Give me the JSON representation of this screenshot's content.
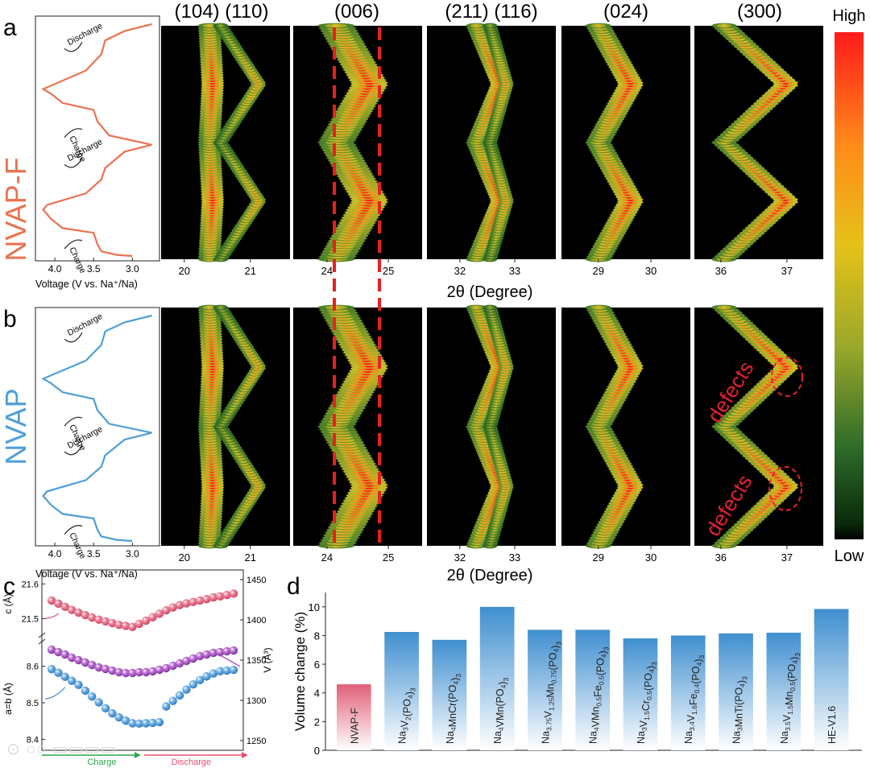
{
  "panel_letters": [
    "a",
    "b",
    "c",
    "d"
  ],
  "colorbar": {
    "high": "High",
    "low": "Low",
    "stops": [
      "#ff1a1a",
      "#ff8a1a",
      "#e6c21a",
      "#8fa62a",
      "#2e6b2a",
      "#0a2a0a",
      "#000000"
    ]
  },
  "shared": {
    "two_theta_label": "2θ (Degree)"
  },
  "rows": [
    {
      "sample": "NVAP-F",
      "color": "#e8734f",
      "voltage_axis_label": "Voltage (V vs. Na⁺/Na)",
      "voltage_ticks": [
        "4.0",
        "3.5",
        "3.0"
      ],
      "labels": {
        "charge": "Charge",
        "discharge": "Discharge"
      },
      "defects": []
    },
    {
      "sample": "NVAP",
      "color": "#4d9fd8",
      "voltage_axis_label": "Voltage (V vs. Na⁺/Na)",
      "voltage_ticks": [
        "4.0",
        "3.5",
        "3.0"
      ],
      "labels": {
        "charge": "Charge",
        "discharge": "Discharge"
      },
      "defects": [
        "defects",
        "defects"
      ]
    }
  ],
  "operando_panels": [
    {
      "peaks": "(104) (110)",
      "ticks": [
        "20",
        "21"
      ],
      "tick_vals": [
        20,
        21
      ],
      "range": [
        19.65,
        21.6
      ],
      "traces": [
        {
          "base": 20.38,
          "amp": 0.05,
          "w": 0.09
        },
        {
          "base": 20.55,
          "amp": 0.58,
          "w": 0.06
        }
      ]
    },
    {
      "peaks": "(006)",
      "ticks": [
        "24",
        "25"
      ],
      "tick_vals": [
        24,
        25
      ],
      "range": [
        23.45,
        25.55
      ],
      "traces": [
        {
          "base": 24.15,
          "amp": 0.55,
          "w": 0.16
        }
      ]
    },
    {
      "peaks": "(211) (116)",
      "ticks": [
        "32",
        "33"
      ],
      "tick_vals": [
        32,
        33
      ],
      "range": [
        31.4,
        33.75
      ],
      "traces": [
        {
          "base": 32.3,
          "amp": 0.45,
          "w": 0.1
        },
        {
          "base": 32.55,
          "amp": 0.3,
          "w": 0.07
        }
      ]
    },
    {
      "peaks": "(024)",
      "ticks": [
        "29",
        "30"
      ],
      "tick_vals": [
        29,
        30
      ],
      "range": [
        28.3,
        30.75
      ],
      "traces": [
        {
          "base": 29.0,
          "amp": 0.62,
          "w": 0.13
        }
      ]
    },
    {
      "peaks": "(300)",
      "ticks": [
        "36",
        "37"
      ],
      "tick_vals": [
        36,
        37
      ],
      "range": [
        35.6,
        37.55
      ],
      "traces": [
        {
          "base": 36.05,
          "amp": 0.95,
          "w": 0.1
        }
      ]
    }
  ],
  "panel_c": {
    "flow_labels": {
      "charge": "Charge",
      "discharge": "Discharge"
    },
    "top": {
      "left_label": "c (Å)",
      "left_ticks": [
        21.5,
        21.6
      ],
      "left_range": [
        21.45,
        21.64
      ],
      "right_label": "V (Å³)",
      "right_ticks": [
        1250,
        1300,
        1350,
        1400,
        1450
      ],
      "right_range": [
        1238,
        1462
      ]
    },
    "bottom": {
      "left_label": "a=b (Å)",
      "left_ticks": [
        8.4,
        8.5,
        8.6
      ],
      "left_range": [
        8.37,
        8.665
      ]
    },
    "colors": {
      "c": "#e0607a",
      "V": "#a450c0",
      "a": "#4a9ad8",
      "charge": "#2ea84a",
      "discharge": "#e85070"
    }
  },
  "chart_data": {
    "type": "bar",
    "title": "",
    "xlabel": "",
    "ylabel": "Volume change (%)",
    "ylim": [
      0,
      11
    ],
    "yticks": [
      0,
      2,
      4,
      6,
      8,
      10
    ],
    "categories": [
      "NVAP-F",
      "Na<sub>3</sub>V<sub>2</sub>(PO<sub>4</sub>)<sub>3</sub>",
      "Na<sub>4</sub>MnCr(PO<sub>4</sub>)<sub>3</sub>",
      "Na<sub>4</sub>VMn(PO<sub>4</sub>)<sub>3</sub>",
      "Na<sub>3.75</sub>V<sub>1.25</sub>Mn<sub>0.75</sub>(PO<sub>4</sub>)<sub>3</sub>",
      "Na<sub>4</sub>VMn<sub>0.5</sub>Fe<sub>0.5</sub>(PO<sub>4</sub>)<sub>3</sub>",
      "Na<sub>3</sub>V<sub>1.5</sub>Cr<sub>0.5</sub>(PO<sub>4</sub>)<sub>3</sub>",
      "Na<sub>3.4</sub>V<sub>1.6</sub>Fe<sub>0.4</sub>(PO<sub>4</sub>)<sub>3</sub>",
      "Na<sub>3</sub>MnTi(PO<sub>4</sub>)<sub>3</sub>",
      "Na<sub>3.5</sub>V<sub>1.5</sub>Mn<sub>0.5</sub>(PO<sub>4</sub>)<sub>3</sub>",
      "HE-V1.6"
    ],
    "values": [
      4.6,
      8.25,
      7.7,
      10.0,
      8.4,
      8.4,
      7.8,
      8.0,
      8.15,
      8.2,
      9.85
    ],
    "bar_colors": [
      "#e06078",
      "#3f8fd0",
      "#3f8fd0",
      "#3f8fd0",
      "#3f8fd0",
      "#3f8fd0",
      "#3f8fd0",
      "#3f8fd0",
      "#3f8fd0",
      "#3f8fd0",
      "#3f8fd0"
    ],
    "series_c_lattice": {
      "name": "c (Å)",
      "values": [
        21.552,
        21.543,
        21.534,
        21.525,
        21.517,
        21.51,
        21.503,
        21.497,
        21.492,
        21.487,
        21.482,
        21.479,
        21.476,
        21.485,
        21.494,
        21.504,
        21.514,
        21.524,
        21.532,
        21.539,
        21.544,
        21.548,
        21.552,
        21.556,
        21.561,
        21.564,
        21.568,
        21.572
      ]
    },
    "series_volume": {
      "name": "V (Å³)",
      "values": [
        1363,
        1360,
        1357,
        1353,
        1350,
        1347,
        1344,
        1341,
        1339,
        1337,
        1335,
        1334,
        1334,
        1335,
        1335,
        1336,
        1338,
        1340,
        1343,
        1346,
        1349,
        1352,
        1355,
        1357,
        1359,
        1360,
        1361,
        1362
      ]
    },
    "series_a_lattice": {
      "name": "a=b (Å)",
      "values": [
        8.592,
        8.582,
        8.571,
        8.56,
        8.549,
        8.533,
        8.517,
        8.501,
        8.485,
        8.471,
        8.46,
        8.451,
        8.444,
        8.443,
        8.444,
        8.445,
        8.447,
        8.49,
        8.505,
        8.52,
        8.536,
        8.55,
        8.562,
        8.572,
        8.58,
        8.586,
        8.588,
        8.59
      ]
    }
  }
}
